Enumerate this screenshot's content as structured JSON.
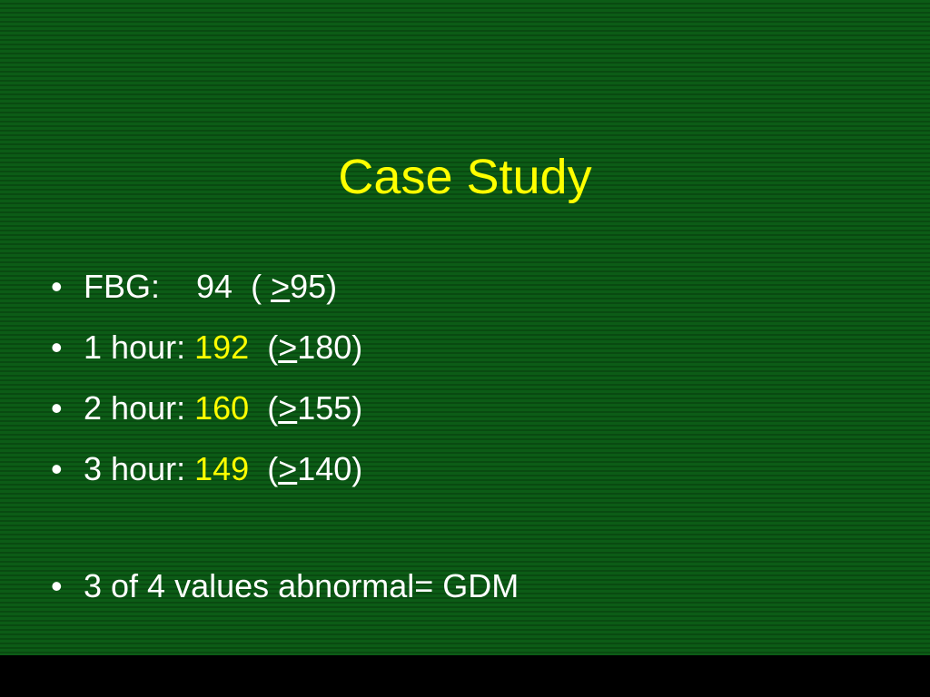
{
  "title": "Case Study",
  "bullets": [
    {
      "label": "FBG:",
      "value": "94",
      "value_color": "#ffffff",
      "open": "(",
      "sign": ">",
      "limit": "95)"
    },
    {
      "label": "1 hour:",
      "value": "192",
      "value_color": "#ffff00",
      "open": "(",
      "sign": ">",
      "limit": "180)"
    },
    {
      "label": "2 hour:",
      "value": "160",
      "value_color": "#ffff00",
      "open": "(",
      "sign": ">",
      "limit": "155)"
    },
    {
      "label": "3 hour:",
      "value": "149",
      "value_color": "#ffff00",
      "open": "(",
      "sign": ">",
      "limit": "140)"
    }
  ],
  "summary": "3 of 4 values abnormal= GDM"
}
